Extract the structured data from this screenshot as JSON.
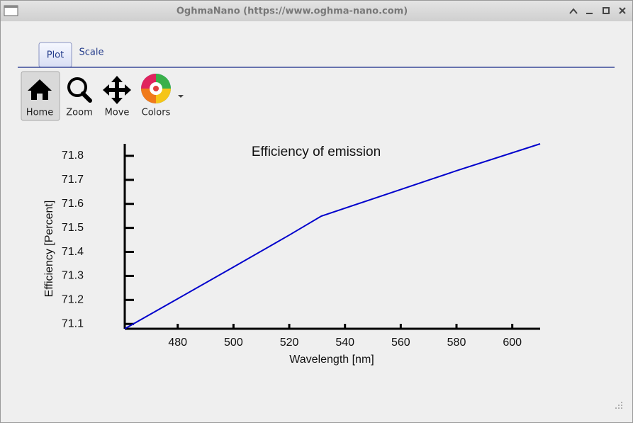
{
  "window": {
    "title": "OghmaNano (https://www.oghma-nano.com)"
  },
  "tabs": [
    "Plot",
    "Scale"
  ],
  "toolbar": [
    "Home",
    "Zoom",
    "Move",
    "Colors"
  ],
  "chart_data": {
    "type": "line",
    "title": "Efficiency of emission",
    "x_label": "Wavelength [nm]",
    "y_label": "Efficiency [Percent]",
    "series": [
      {
        "color": "#0000cc",
        "x": [
          461,
          480,
          500,
          520,
          531.5,
          560,
          580,
          610
        ],
        "values": [
          71.08,
          71.205,
          71.337,
          71.47,
          71.549,
          71.66,
          71.738,
          71.85
        ]
      }
    ],
    "xlim": [
      461,
      610
    ],
    "ylim": [
      71.08,
      71.85
    ],
    "xticks": [
      480,
      500,
      520,
      540,
      560,
      580,
      600
    ],
    "yticks": [
      71.1,
      71.2,
      71.3,
      71.4,
      71.5,
      71.6,
      71.7,
      71.8
    ]
  }
}
